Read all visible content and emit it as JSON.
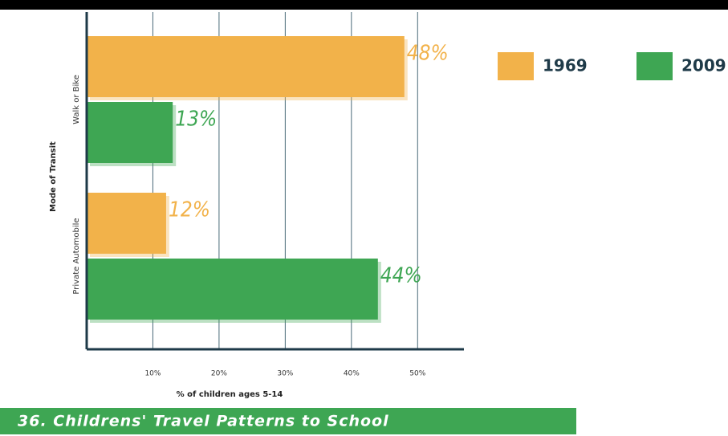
{
  "chart_data": {
    "type": "bar",
    "orientation": "horizontal",
    "title": "36.  Childrens' Travel Patterns to School",
    "x_label": "% of children ages 5-14",
    "y_label": "Mode of Transit",
    "categories": [
      "Walk or Bike",
      "Private Automobile"
    ],
    "series": [
      {
        "name": "1969",
        "color": "#f2b24a",
        "values": [
          48,
          12
        ],
        "value_labels": [
          "48%",
          "12%"
        ]
      },
      {
        "name": "2009",
        "color": "#3ea653",
        "values": [
          13,
          44
        ],
        "value_labels": [
          "13%",
          "44%"
        ]
      }
    ],
    "xlim": [
      0,
      57
    ],
    "xticks": [
      {
        "value": 10,
        "label": "10%"
      },
      {
        "value": 20,
        "label": "20%"
      },
      {
        "value": 30,
        "label": "30%"
      },
      {
        "value": 40,
        "label": "40%"
      },
      {
        "value": 50,
        "label": "50%"
      }
    ],
    "grid": true,
    "legend": "top-right"
  }
}
